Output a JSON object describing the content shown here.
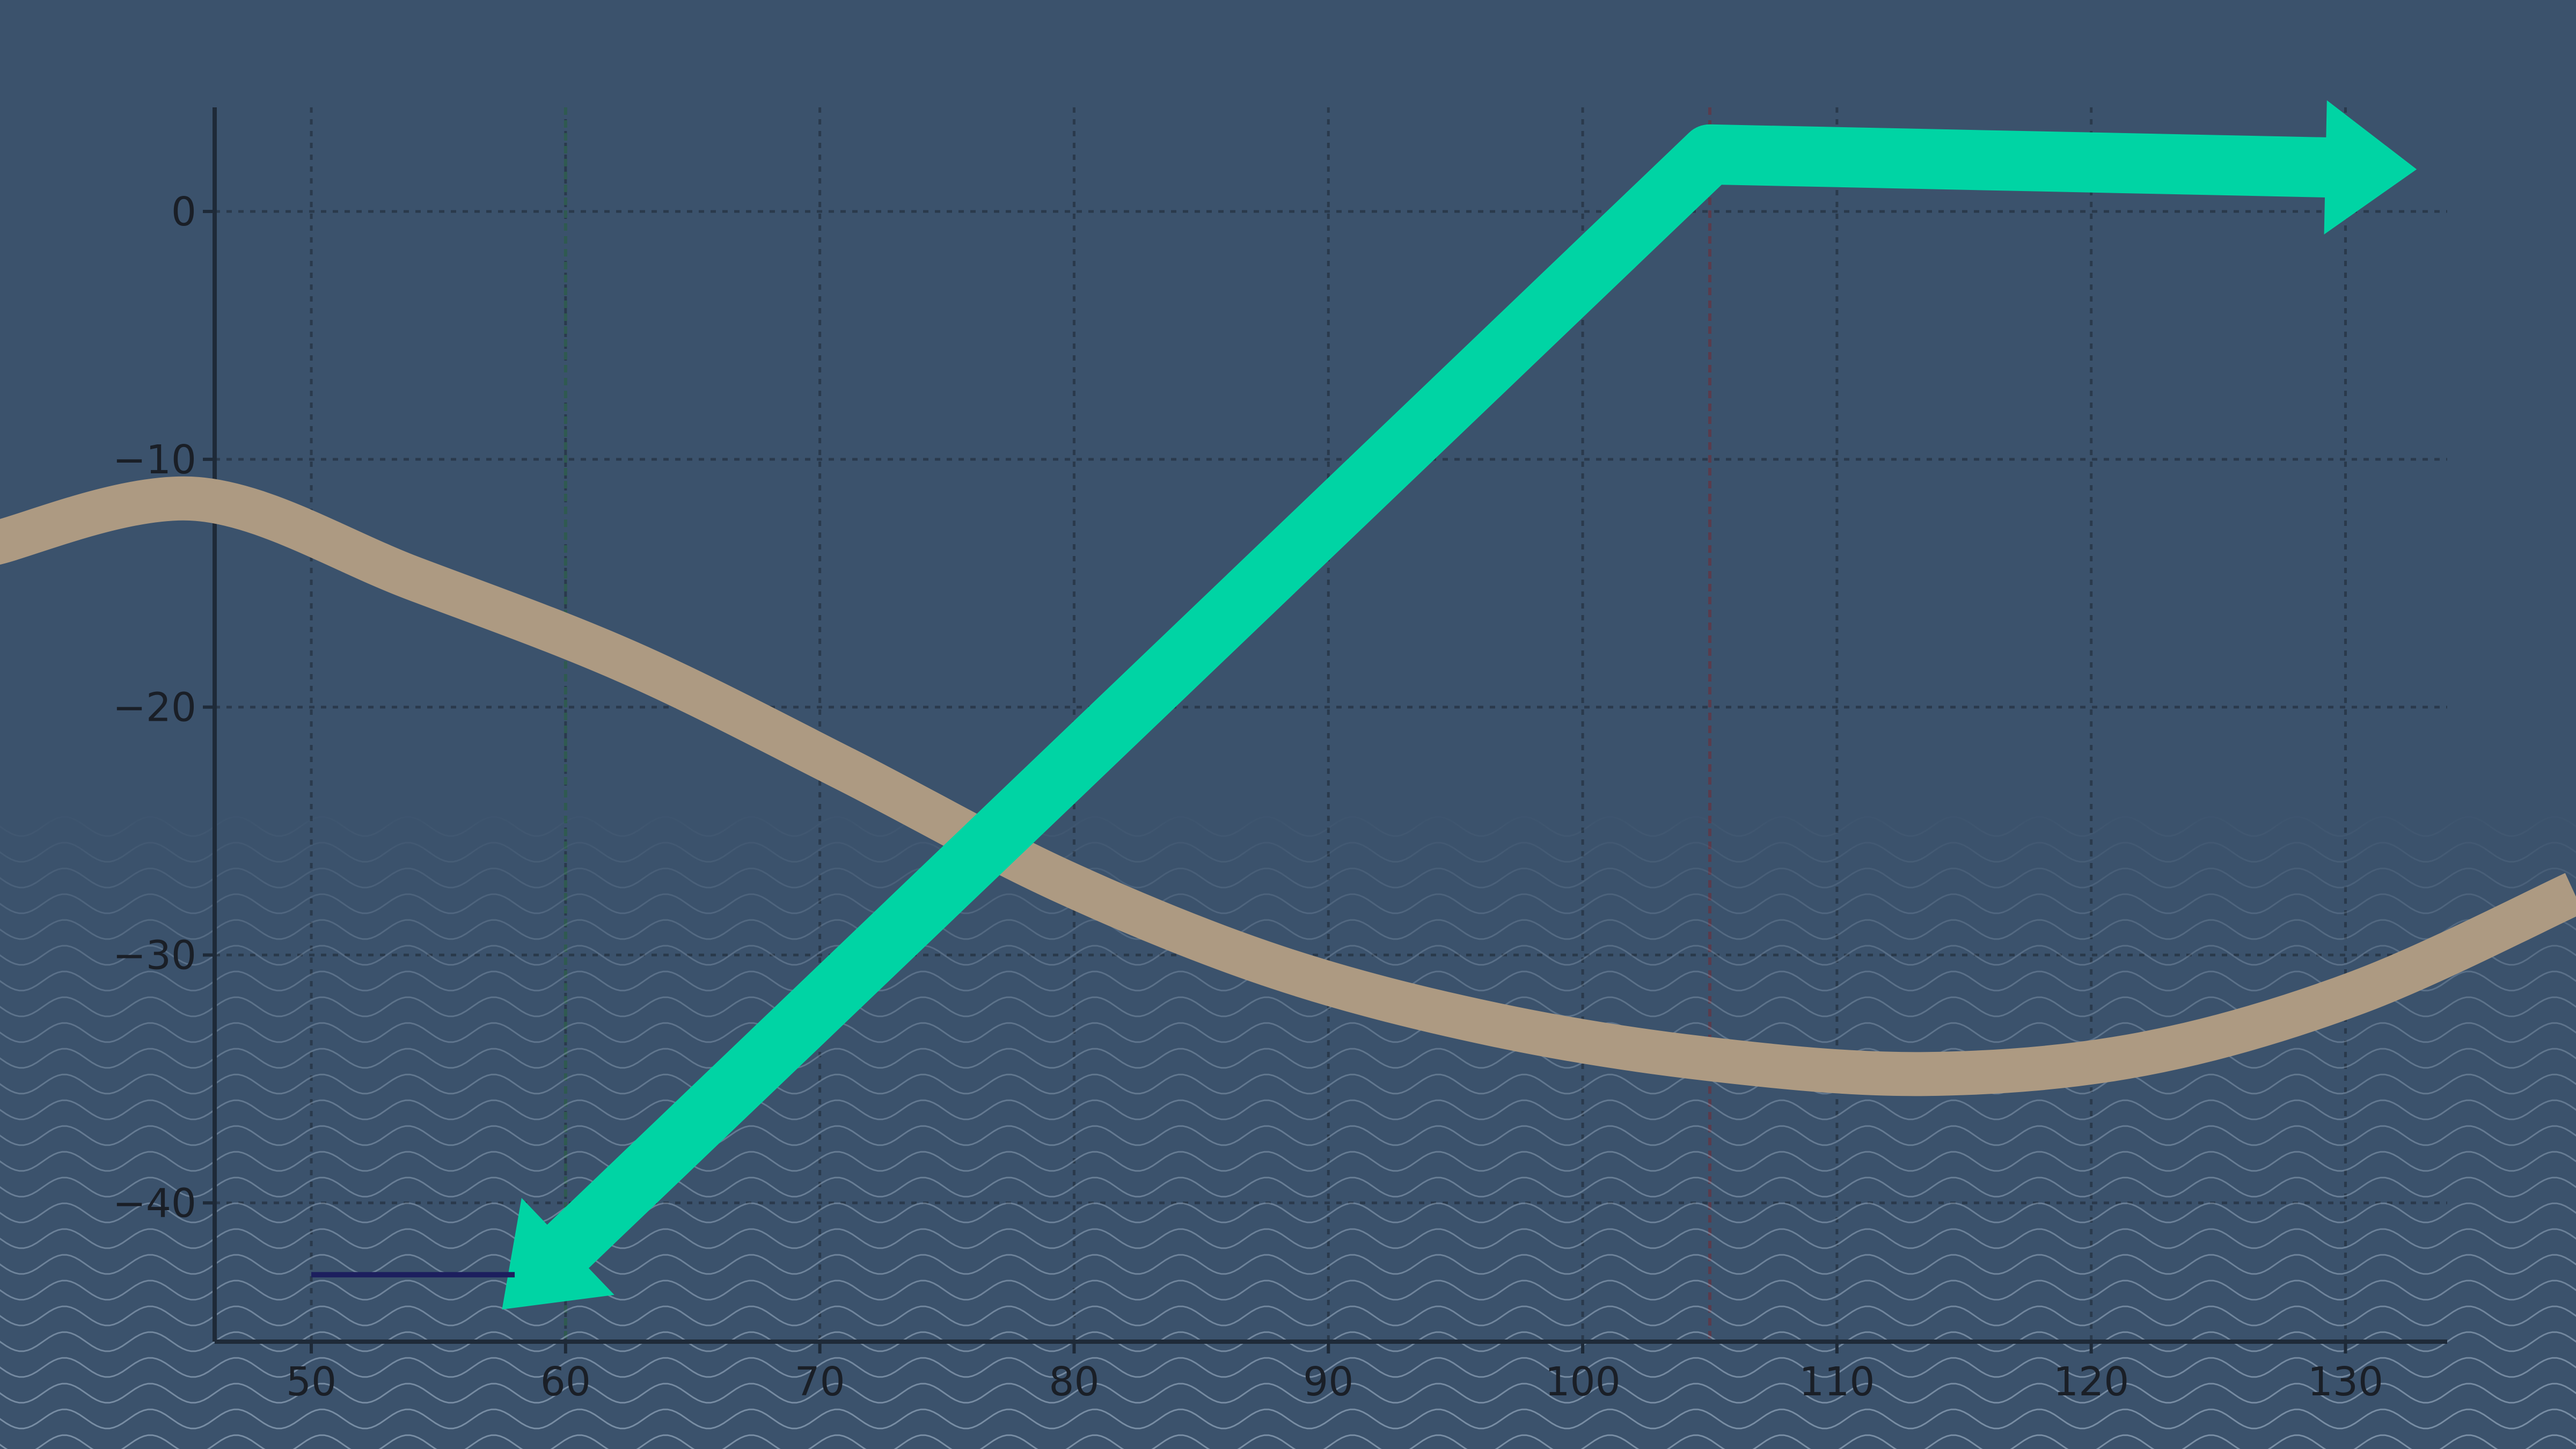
{
  "chart_data": {
    "type": "line",
    "title": "",
    "xlabel": "",
    "ylabel": "",
    "xlim": [
      46.2,
      134
    ],
    "ylim": [
      -45.6,
      4.2
    ],
    "grid": true,
    "legend": "none",
    "x_ticks": [
      50,
      60,
      70,
      80,
      90,
      100,
      110,
      120,
      130
    ],
    "y_ticks": [
      0,
      -10,
      -20,
      -30,
      -40
    ],
    "x_tick_labels": [
      "50",
      "60",
      "70",
      "80",
      "90",
      "100",
      "110",
      "120",
      "130"
    ],
    "y_tick_labels": [
      "0",
      "−10",
      "−20",
      "−30",
      "−40"
    ],
    "reference_lines": [
      {
        "orientation": "vertical",
        "x": 60,
        "color": "#2f5a50"
      },
      {
        "orientation": "vertical",
        "x": 105,
        "color": "#5a3b4c"
      }
    ],
    "series": [
      {
        "style": "thick-curve",
        "color": "#ad9a82",
        "x": [
          37.5,
          45.5,
          54,
          62.5,
          71,
          79.5,
          88,
          96.5,
          105,
          113.5,
          122,
          130.5,
          139
        ],
        "y": [
          -13.4,
          -11.6,
          -14.8,
          -18.2,
          -22.5,
          -27.0,
          -30.5,
          -32.8,
          -34.2,
          -34.8,
          -34.0,
          -31.5,
          -27.5
        ]
      },
      {
        "style": "thick-arrow-polyline",
        "color": "#00d4a4",
        "x": [
          57.5,
          105,
          132.8
        ],
        "y": [
          -44.3,
          2.3,
          1.7
        ]
      },
      {
        "style": "thin-line",
        "color": "#1d1f5e",
        "x": [
          50,
          58
        ],
        "y": [
          -42.9,
          -42.9
        ]
      }
    ]
  }
}
